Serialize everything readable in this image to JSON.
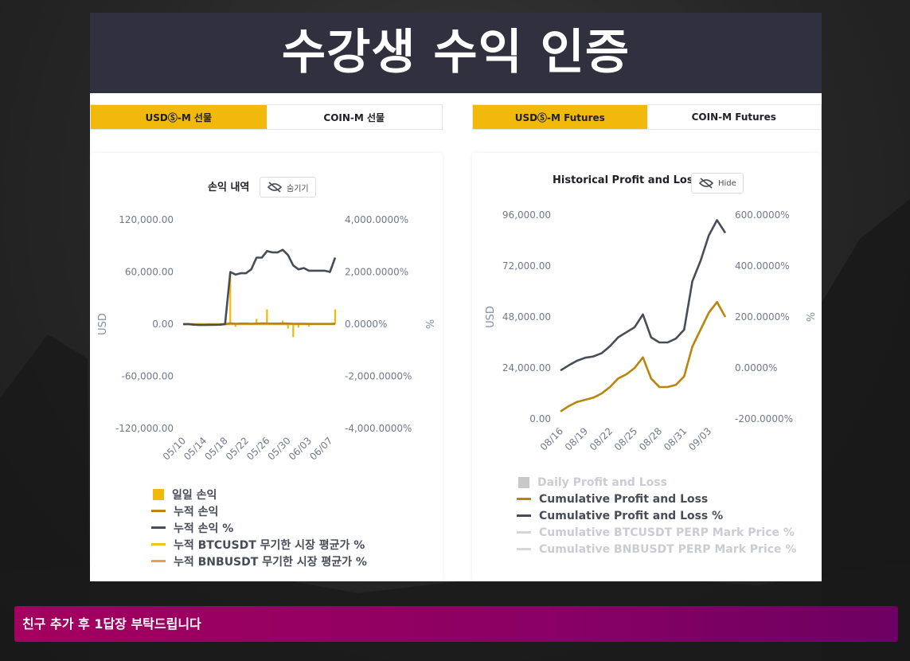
{
  "banner": {
    "title": "수강생 수익 인증"
  },
  "left": {
    "tabs": [
      {
        "label": "USDⓈ-M 선물",
        "active": true
      },
      {
        "label": "COIN-M 선물",
        "active": false
      }
    ],
    "hide_label": "숨기기",
    "legend": [
      {
        "label": "일일 손익",
        "color": "#f0b90b",
        "shape": "square"
      },
      {
        "label": "누적 손익",
        "color": "#b8860b",
        "shape": "line"
      },
      {
        "label": "누적 손익 %",
        "color": "#474d57",
        "shape": "line"
      },
      {
        "label": "누적 BTCUSDT 무기한 시장 평균가 %",
        "color": "#f0c51c",
        "shape": "line"
      },
      {
        "label": "누적 BNBUSDT 무기한 시장 평균가 %",
        "color": "#f29a52",
        "shape": "line"
      }
    ]
  },
  "right": {
    "tabs": [
      {
        "label": "USDⓈ-M Futures",
        "active": true
      },
      {
        "label": "COIN-M Futures",
        "active": false
      }
    ],
    "hide_label": "Hide",
    "legend": [
      {
        "label": "Daily Profit and Loss",
        "color": "#c8c8c8",
        "shape": "square",
        "faded": true
      },
      {
        "label": "Cumulative Profit and Loss",
        "color": "#b8860b",
        "shape": "line",
        "faded": false
      },
      {
        "label": "Cumulative Profit and Loss %",
        "color": "#474d57",
        "shape": "line",
        "faded": false
      },
      {
        "label": "Cumulative BTCUSDT PERP Mark Price %",
        "color": "#d6d6d6",
        "shape": "line",
        "faded": true
      },
      {
        "label": "Cumulative BNBUSDT PERP Mark Price %",
        "color": "#d6d6d6",
        "shape": "line",
        "faded": true
      }
    ]
  },
  "chart_data": [
    {
      "type": "line",
      "title": "손익 내역",
      "ylabel": "USD",
      "y2label": "%",
      "ylim": [
        -120000,
        120000
      ],
      "y2lim": [
        -4000,
        4000
      ],
      "yticks": [
        "120,000.00",
        "60,000.00",
        "0.00",
        "-60,000.00",
        "-120,000.00"
      ],
      "y2ticks": [
        "4,000.0000%",
        "2,000.0000%",
        "0.0000%",
        "-2,000.0000%",
        "-4,000.0000%"
      ],
      "xticks": [
        "05/10",
        "05/14",
        "05/18",
        "05/22",
        "05/26",
        "05/30",
        "06/03",
        "06/07"
      ],
      "x": [
        "05/10",
        "05/11",
        "05/12",
        "05/13",
        "05/14",
        "05/15",
        "05/16",
        "05/17",
        "05/18",
        "05/19",
        "05/20",
        "05/21",
        "05/22",
        "05/23",
        "05/24",
        "05/25",
        "05/26",
        "05/27",
        "05/28",
        "05/29",
        "05/30",
        "05/31",
        "06/01",
        "06/02",
        "06/03",
        "06/04",
        "06/05",
        "06/06",
        "06/07",
        "06/08"
      ],
      "series": [
        {
          "name": "누적 손익 %",
          "color": "#474d57",
          "axis": "right",
          "values": [
            0,
            0,
            -20,
            -30,
            -30,
            -25,
            -25,
            -20,
            0,
            2000,
            1900,
            1950,
            1950,
            2100,
            2550,
            2550,
            2800,
            2750,
            2750,
            2850,
            2650,
            2250,
            2100,
            2150,
            2050,
            2050,
            2050,
            2050,
            2000,
            2550
          ]
        },
        {
          "name": "누적 손익",
          "color": "#b8860b",
          "axis": "left",
          "values": [
            0,
            0,
            -500,
            -800,
            -900,
            -800,
            -700,
            -600,
            0,
            800,
            500,
            600,
            600,
            500,
            600,
            800,
            700,
            600,
            600,
            700,
            600,
            500,
            400,
            400,
            300,
            300,
            300,
            300,
            300,
            400
          ]
        },
        {
          "name": "누적 BTCUSDT 무기한 시장 평균가 %",
          "color": "#f0c51c",
          "axis": "right",
          "values": [
            0,
            0,
            0,
            0,
            0,
            0,
            0,
            0,
            0,
            0,
            0,
            0,
            0,
            0,
            0,
            0,
            0,
            0,
            0,
            0,
            0,
            0,
            0,
            0,
            0,
            0,
            0,
            0,
            0,
            0
          ]
        },
        {
          "name": "누적 BNBUSDT 무기한 시장 평균가 %",
          "color": "#f29a52",
          "axis": "right",
          "values": [
            0,
            0,
            0,
            0,
            0,
            0,
            0,
            0,
            0,
            0,
            0,
            0,
            0,
            0,
            0,
            0,
            0,
            0,
            0,
            0,
            0,
            0,
            0,
            0,
            0,
            0,
            0,
            0,
            0,
            0
          ]
        }
      ],
      "bars": {
        "name": "일일 손익",
        "color": "#f0b90b",
        "values": [
          0,
          0,
          -500,
          -300,
          -100,
          100,
          100,
          100,
          600,
          60000,
          -3000,
          1000,
          0,
          -1000,
          6000,
          0,
          17000,
          -1000,
          0,
          4000,
          -5000,
          -15000,
          -4000,
          1000,
          -3000,
          0,
          0,
          0,
          -1000,
          17000
        ]
      }
    },
    {
      "type": "line",
      "title": "Historical Profit and Loss",
      "ylabel": "USD",
      "y2label": "%",
      "ylim": [
        0,
        96000
      ],
      "y2lim": [
        -200,
        600
      ],
      "yticks": [
        "96,000.00",
        "72,000.00",
        "48,000.00",
        "24,000.00",
        "0.00"
      ],
      "y2ticks": [
        "600.0000%",
        "400.0000%",
        "200.0000%",
        "0.0000%",
        "-200.0000%"
      ],
      "xticks": [
        "08/16",
        "08/19",
        "08/22",
        "08/25",
        "08/28",
        "08/31",
        "09/03"
      ],
      "x": [
        "08/16",
        "08/17",
        "08/18",
        "08/19",
        "08/20",
        "08/21",
        "08/22",
        "08/23",
        "08/24",
        "08/25",
        "08/26",
        "08/27",
        "08/28",
        "08/29",
        "08/30",
        "08/31",
        "09/01",
        "09/02",
        "09/03",
        "09/04",
        "09/05"
      ],
      "series": [
        {
          "name": "Cumulative Profit and Loss %",
          "color": "#474d57",
          "axis": "right",
          "values": [
            -10,
            10,
            28,
            40,
            45,
            58,
            85,
            120,
            140,
            160,
            210,
            120,
            100,
            100,
            115,
            150,
            340,
            420,
            520,
            580,
            530
          ]
        },
        {
          "name": "Cumulative Profit and Loss",
          "color": "#b8860b",
          "axis": "left",
          "values": [
            3500,
            6000,
            8000,
            9000,
            10000,
            12000,
            15000,
            19000,
            21000,
            24000,
            29000,
            19000,
            15000,
            15000,
            16000,
            20000,
            34000,
            42000,
            50000,
            55000,
            48000
          ]
        }
      ]
    }
  ],
  "footer": {
    "cta": "친구 추가 후 1답장 부탁드립니다"
  }
}
